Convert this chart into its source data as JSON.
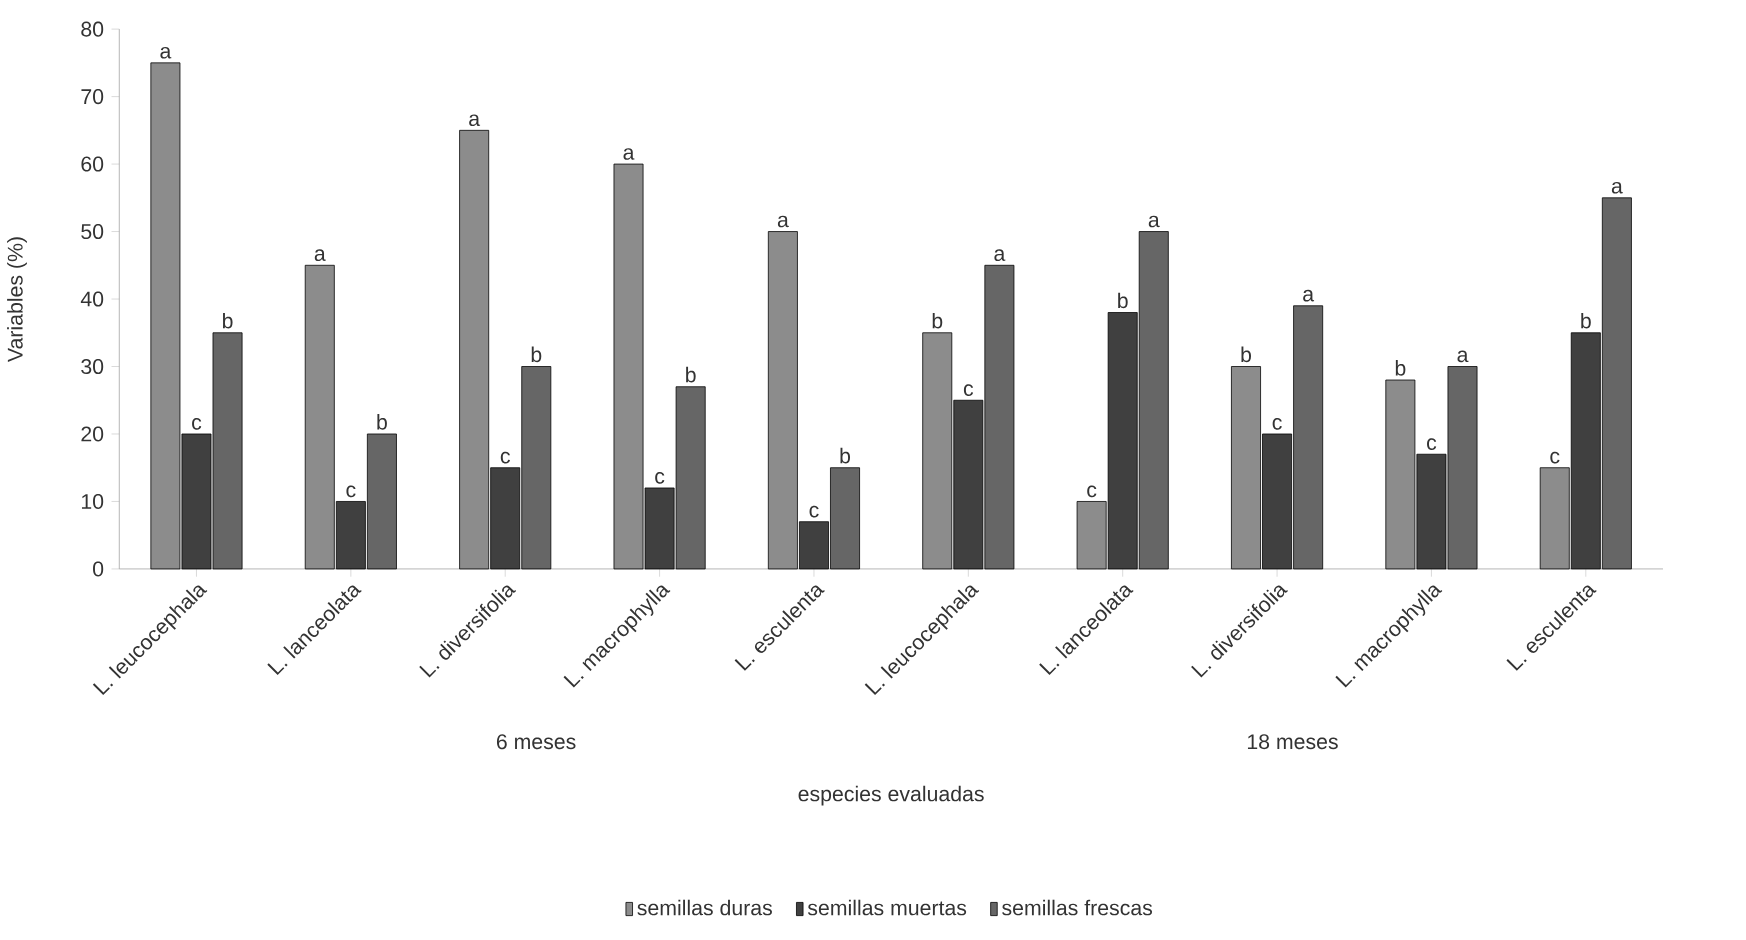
{
  "chart_data": {
    "type": "bar",
    "xlabel": "especies evaluadas",
    "ylabel": "Variables (%)",
    "categories": [
      "L. leucocephala",
      "L. lanceolata",
      "L. diversifolia",
      "L. macrophylla",
      "L. esculenta",
      "L. leucocephala",
      "L. lanceolata",
      "L. diversifolia",
      "L. macrophylla",
      "L. esculenta"
    ],
    "series": [
      {
        "name": "semillas duras",
        "color": "#8c8c8c",
        "values": [
          75,
          45,
          65,
          60,
          50,
          35,
          10,
          30,
          28,
          15
        ],
        "value_labels": [
          "a",
          "a",
          "a",
          "a",
          "a",
          "b",
          "c",
          "b",
          "b",
          "c"
        ]
      },
      {
        "name": "semillas muertas",
        "color": "#404040",
        "values": [
          20,
          10,
          15,
          12,
          7,
          25,
          38,
          20,
          17,
          35
        ],
        "value_labels": [
          "c",
          "c",
          "c",
          "c",
          "c",
          "c",
          "b",
          "c",
          "c",
          "b"
        ]
      },
      {
        "name": "semillas frescas",
        "color": "#666666",
        "values": [
          35,
          20,
          30,
          27,
          15,
          45,
          50,
          39,
          30,
          55
        ],
        "value_labels": [
          "b",
          "b",
          "b",
          "b",
          "b",
          "a",
          "a",
          "a",
          "a",
          "a"
        ]
      }
    ],
    "annotations": [
      "6 meses",
      "18 meses"
    ],
    "ylim": [
      0,
      80
    ],
    "yticks": [
      0,
      10,
      20,
      30,
      40,
      50,
      60,
      70,
      80
    ],
    "grid": false,
    "legend": "bottom"
  }
}
